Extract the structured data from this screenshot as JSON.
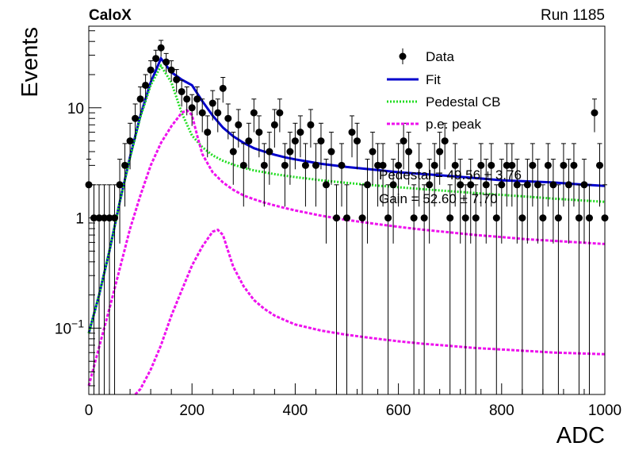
{
  "header": {
    "experiment": "CaloX",
    "run": "Run 1185"
  },
  "chart_data": {
    "type": "scatter",
    "xlabel": "ADC",
    "ylabel": "Events",
    "xlim": [
      0,
      1000
    ],
    "ylim": [
      0.025,
      55
    ],
    "yscale": "log",
    "x_ticks": [
      0,
      200,
      400,
      600,
      800,
      1000
    ],
    "y_tick_labels": [
      {
        "value": 0.1,
        "base": "10",
        "exp": "−1"
      },
      {
        "value": 1,
        "base": "1",
        "exp": ""
      },
      {
        "value": 10,
        "base": "10",
        "exp": ""
      }
    ],
    "legend": {
      "placement": "top-right",
      "entries": [
        "Data",
        "Fit",
        "Pedestal CB",
        "p.e. peak"
      ]
    },
    "stats": [
      "Pedestal = 49.56 ± 3.76",
      "Gain = 52.60 ± 7.70"
    ],
    "colors": {
      "data": "#000000",
      "fit": "#0000cc",
      "pedestal": "#22dd22",
      "pe": "#ee11ee"
    },
    "series": [
      {
        "name": "Data",
        "x": [
          0,
          10,
          20,
          30,
          40,
          50,
          60,
          70,
          80,
          90,
          100,
          110,
          120,
          130,
          140,
          150,
          160,
          170,
          180,
          190,
          200,
          210,
          220,
          230,
          240,
          250,
          260,
          270,
          280,
          290,
          300,
          310,
          320,
          330,
          340,
          350,
          360,
          370,
          380,
          390,
          400,
          410,
          420,
          430,
          440,
          450,
          460,
          470,
          480,
          490,
          500,
          510,
          520,
          530,
          540,
          550,
          560,
          570,
          580,
          590,
          600,
          610,
          620,
          630,
          640,
          650,
          660,
          670,
          680,
          690,
          700,
          710,
          720,
          730,
          740,
          750,
          760,
          770,
          780,
          790,
          800,
          810,
          820,
          830,
          840,
          850,
          860,
          870,
          880,
          890,
          900,
          910,
          920,
          930,
          940,
          950,
          960,
          970,
          980,
          990,
          1000
        ],
        "y": [
          2,
          1,
          1,
          1,
          1,
          1,
          2,
          3,
          5,
          8,
          12,
          16,
          22,
          28,
          35,
          26,
          22,
          18,
          14,
          12,
          10,
          12,
          9,
          6,
          11,
          9,
          15,
          8,
          4,
          7,
          3,
          5,
          9,
          6,
          3,
          4,
          7,
          9,
          3,
          4,
          5,
          6,
          3,
          7,
          3,
          5,
          2,
          4,
          1,
          3,
          1,
          6,
          5,
          1,
          2,
          4,
          3,
          3,
          1,
          2,
          3,
          5,
          4,
          1,
          3,
          1,
          2,
          3,
          4,
          5,
          1,
          3,
          2,
          1,
          2,
          1,
          3,
          2,
          3,
          1,
          2,
          3,
          3,
          2,
          1,
          2,
          3,
          2,
          1,
          3,
          2,
          1,
          3,
          2,
          3,
          1,
          2,
          1,
          9,
          3,
          1
        ]
      },
      {
        "name": "Fit",
        "x": [
          0,
          20,
          40,
          60,
          80,
          100,
          120,
          140,
          160,
          180,
          200,
          220,
          240,
          260,
          280,
          300,
          320,
          340,
          360,
          380,
          400,
          450,
          500,
          550,
          600,
          650,
          700,
          750,
          800,
          850,
          900,
          950,
          1000
        ],
        "y": [
          0.09,
          0.2,
          0.5,
          1.4,
          3.6,
          8.5,
          17,
          28,
          21,
          18,
          16,
          11.5,
          8.5,
          6.6,
          5.5,
          4.8,
          4.3,
          4,
          3.75,
          3.55,
          3.4,
          3.1,
          2.9,
          2.75,
          2.6,
          2.5,
          2.4,
          2.3,
          2.2,
          2.15,
          2.1,
          2.02,
          1.95
        ]
      },
      {
        "name": "Pedestal CB",
        "x": [
          0,
          20,
          40,
          60,
          80,
          100,
          120,
          140,
          160,
          180,
          200,
          220,
          240,
          260,
          280,
          300,
          320,
          340,
          360,
          380,
          400,
          450,
          500,
          550,
          600,
          650,
          700,
          750,
          800,
          850,
          900,
          950,
          1000
        ],
        "y": [
          0.09,
          0.2,
          0.5,
          1.4,
          3.5,
          8.2,
          16,
          24,
          17,
          9,
          5.6,
          4.4,
          3.7,
          3.3,
          3.05,
          2.85,
          2.7,
          2.6,
          2.5,
          2.42,
          2.35,
          2.2,
          2.08,
          1.98,
          1.9,
          1.82,
          1.75,
          1.68,
          1.62,
          1.56,
          1.5,
          1.45,
          1.4
        ]
      },
      {
        "name": "p.e. peak",
        "x": [
          0,
          40,
          80,
          100,
          120,
          140,
          160,
          180,
          190,
          200,
          210,
          220,
          240,
          260,
          280,
          300,
          320,
          340,
          360,
          380,
          400,
          450,
          500,
          550,
          600,
          650,
          700,
          750,
          800,
          850,
          900,
          950,
          1000
        ],
        "y": [
          0.03,
          0.15,
          0.8,
          1.6,
          3,
          4.8,
          6.8,
          9,
          9.5,
          8.6,
          5.6,
          3.8,
          2.6,
          2.1,
          1.8,
          1.6,
          1.48,
          1.38,
          1.3,
          1.23,
          1.17,
          1.05,
          0.96,
          0.89,
          0.83,
          0.78,
          0.74,
          0.7,
          0.67,
          0.64,
          0.62,
          0.6,
          0.58
        ]
      },
      {
        "name": "p.e. peak",
        "x": [
          90,
          100,
          120,
          140,
          160,
          180,
          200,
          220,
          240,
          250,
          260,
          270,
          280,
          300,
          320,
          340,
          360,
          380,
          400,
          450,
          500,
          550,
          600,
          650,
          700,
          750,
          800,
          850,
          900,
          950,
          1000
        ],
        "y": [
          0.025,
          0.028,
          0.042,
          0.07,
          0.13,
          0.22,
          0.37,
          0.55,
          0.75,
          0.78,
          0.7,
          0.5,
          0.36,
          0.24,
          0.18,
          0.15,
          0.13,
          0.118,
          0.108,
          0.095,
          0.087,
          0.081,
          0.076,
          0.072,
          0.069,
          0.066,
          0.064,
          0.062,
          0.06,
          0.059,
          0.058
        ]
      }
    ]
  }
}
